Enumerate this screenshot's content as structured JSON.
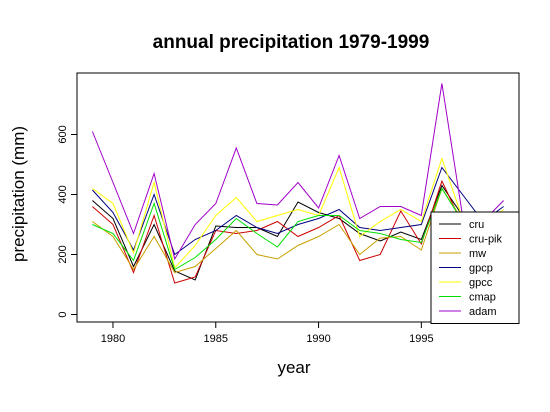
{
  "chart_data": {
    "type": "line",
    "title": "annual precipitation 1979-1999",
    "xlabel": "year",
    "ylabel": "precipitation (mm)",
    "xlim": [
      1978.25,
      1999.75
    ],
    "ylim": [
      -25,
      805
    ],
    "xticks": [
      1980,
      1985,
      1990,
      1995
    ],
    "yticks": [
      0,
      200,
      400,
      600
    ],
    "legend_position": "bottom-right",
    "x": [
      1979,
      1980,
      1981,
      1982,
      1983,
      1984,
      1985,
      1986,
      1987,
      1988,
      1989,
      1990,
      1991,
      1992,
      1993,
      1994,
      1995,
      1996,
      1997,
      1998,
      1999
    ],
    "series": [
      {
        "name": "cru",
        "color": "#000000",
        "values": [
          380,
          320,
          160,
          300,
          145,
          115,
          295,
          290,
          290,
          260,
          375,
          340,
          320,
          270,
          245,
          275,
          250,
          430,
          330,
          280,
          340
        ]
      },
      {
        "name": "cru-pik",
        "color": "#cc0000",
        "values": [
          360,
          300,
          140,
          330,
          105,
          125,
          280,
          270,
          280,
          310,
          260,
          290,
          330,
          180,
          200,
          345,
          235,
          445,
          300,
          280,
          330
        ]
      },
      {
        "name": "mw",
        "color": "#c8a000",
        "values": [
          310,
          260,
          150,
          260,
          140,
          160,
          220,
          280,
          200,
          185,
          230,
          260,
          300,
          200,
          255,
          260,
          215,
          420,
          315,
          260,
          320
        ]
      },
      {
        "name": "gpcp",
        "color": "#000080",
        "values": [
          415,
          340,
          215,
          400,
          200,
          250,
          280,
          330,
          290,
          270,
          300,
          320,
          350,
          290,
          280,
          290,
          300,
          490,
          400,
          310,
          360
        ]
      },
      {
        "name": "gpcc",
        "color": "#ffff00",
        "values": [
          420,
          370,
          205,
          440,
          155,
          230,
          330,
          390,
          310,
          330,
          350,
          330,
          490,
          260,
          310,
          350,
          310,
          520,
          320,
          300,
          350
        ]
      },
      {
        "name": "cmap",
        "color": "#00e000",
        "values": [
          300,
          270,
          180,
          370,
          150,
          190,
          250,
          320,
          270,
          225,
          310,
          330,
          330,
          280,
          270,
          250,
          240,
          420,
          310,
          270,
          320
        ]
      },
      {
        "name": "adam",
        "color": "#a000c8",
        "values": [
          610,
          440,
          270,
          470,
          185,
          300,
          370,
          555,
          370,
          365,
          440,
          355,
          530,
          320,
          360,
          360,
          330,
          770,
          330,
          310,
          380
        ]
      }
    ]
  }
}
